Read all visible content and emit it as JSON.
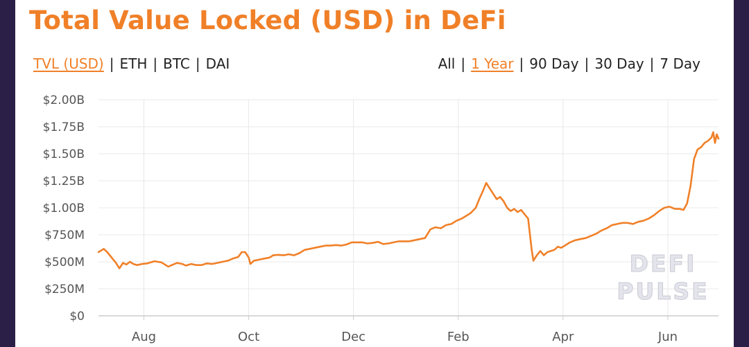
{
  "title": "Total Value Locked (USD) in DeFi",
  "metric_options": [
    {
      "label": "TVL (USD)",
      "active": true
    },
    {
      "label": "ETH",
      "active": false
    },
    {
      "label": "BTC",
      "active": false
    },
    {
      "label": "DAI",
      "active": false
    }
  ],
  "range_options": [
    {
      "label": "All",
      "active": false
    },
    {
      "label": "1 Year",
      "active": true
    },
    {
      "label": "90 Day",
      "active": false
    },
    {
      "label": "30 Day",
      "active": false
    },
    {
      "label": "7 Day",
      "active": false
    }
  ],
  "watermark": [
    "DEFI",
    "PULSE"
  ],
  "colors": {
    "accent": "#f08028",
    "grid": "#e8e8e8",
    "axis": "#cccccc",
    "tick_text": "#555555"
  },
  "chart_data": {
    "type": "line",
    "title": "Total Value Locked (USD) in DeFi",
    "xlabel": "",
    "ylabel": "",
    "ylim": [
      0,
      2000000000
    ],
    "xlim": [
      0,
      355
    ],
    "grid": true,
    "legend": "none",
    "y_ticks": [
      {
        "value": 0,
        "label": "$0"
      },
      {
        "value": 250000000,
        "label": "$250M"
      },
      {
        "value": 500000000,
        "label": "$500M"
      },
      {
        "value": 750000000,
        "label": "$750M"
      },
      {
        "value": 1000000000,
        "label": "$1.00B"
      },
      {
        "value": 1250000000,
        "label": "$1.25B"
      },
      {
        "value": 1500000000,
        "label": "$1.50B"
      },
      {
        "value": 1750000000,
        "label": "$1.75B"
      },
      {
        "value": 2000000000,
        "label": "$2.00B"
      }
    ],
    "x_ticks": [
      {
        "day": 26,
        "label": "Aug"
      },
      {
        "day": 86,
        "label": "Oct"
      },
      {
        "day": 146,
        "label": "Dec"
      },
      {
        "day": 206,
        "label": "Feb"
      },
      {
        "day": 266,
        "label": "Apr"
      },
      {
        "day": 326,
        "label": "Jun"
      }
    ],
    "series": [
      {
        "color": "#f08028",
        "points": [
          [
            0,
            590000000
          ],
          [
            3,
            620000000
          ],
          [
            5,
            590000000
          ],
          [
            8,
            530000000
          ],
          [
            10,
            490000000
          ],
          [
            12,
            440000000
          ],
          [
            14,
            490000000
          ],
          [
            16,
            475000000
          ],
          [
            18,
            500000000
          ],
          [
            20,
            480000000
          ],
          [
            22,
            470000000
          ],
          [
            25,
            480000000
          ],
          [
            28,
            485000000
          ],
          [
            30,
            495000000
          ],
          [
            32,
            505000000
          ],
          [
            34,
            500000000
          ],
          [
            36,
            495000000
          ],
          [
            38,
            475000000
          ],
          [
            40,
            455000000
          ],
          [
            42,
            470000000
          ],
          [
            45,
            490000000
          ],
          [
            48,
            480000000
          ],
          [
            50,
            465000000
          ],
          [
            53,
            480000000
          ],
          [
            56,
            470000000
          ],
          [
            59,
            470000000
          ],
          [
            62,
            485000000
          ],
          [
            65,
            480000000
          ],
          [
            68,
            490000000
          ],
          [
            71,
            500000000
          ],
          [
            74,
            510000000
          ],
          [
            77,
            530000000
          ],
          [
            80,
            545000000
          ],
          [
            82,
            590000000
          ],
          [
            84,
            590000000
          ],
          [
            86,
            540000000
          ],
          [
            87,
            480000000
          ],
          [
            89,
            510000000
          ],
          [
            92,
            520000000
          ],
          [
            95,
            530000000
          ],
          [
            98,
            540000000
          ],
          [
            100,
            560000000
          ],
          [
            103,
            565000000
          ],
          [
            106,
            560000000
          ],
          [
            109,
            570000000
          ],
          [
            112,
            560000000
          ],
          [
            115,
            580000000
          ],
          [
            118,
            610000000
          ],
          [
            121,
            620000000
          ],
          [
            124,
            630000000
          ],
          [
            127,
            640000000
          ],
          [
            130,
            650000000
          ],
          [
            133,
            650000000
          ],
          [
            136,
            655000000
          ],
          [
            139,
            650000000
          ],
          [
            142,
            660000000
          ],
          [
            145,
            680000000
          ],
          [
            148,
            680000000
          ],
          [
            151,
            680000000
          ],
          [
            154,
            670000000
          ],
          [
            157,
            675000000
          ],
          [
            160,
            685000000
          ],
          [
            163,
            665000000
          ],
          [
            166,
            670000000
          ],
          [
            169,
            680000000
          ],
          [
            172,
            690000000
          ],
          [
            175,
            690000000
          ],
          [
            178,
            690000000
          ],
          [
            181,
            700000000
          ],
          [
            184,
            710000000
          ],
          [
            187,
            720000000
          ],
          [
            190,
            800000000
          ],
          [
            193,
            820000000
          ],
          [
            196,
            810000000
          ],
          [
            199,
            840000000
          ],
          [
            202,
            850000000
          ],
          [
            205,
            880000000
          ],
          [
            208,
            900000000
          ],
          [
            210,
            920000000
          ],
          [
            213,
            950000000
          ],
          [
            216,
            1000000000
          ],
          [
            218,
            1080000000
          ],
          [
            220,
            1150000000
          ],
          [
            222,
            1230000000
          ],
          [
            224,
            1180000000
          ],
          [
            226,
            1130000000
          ],
          [
            228,
            1080000000
          ],
          [
            230,
            1100000000
          ],
          [
            232,
            1060000000
          ],
          [
            234,
            1000000000
          ],
          [
            236,
            970000000
          ],
          [
            238,
            990000000
          ],
          [
            240,
            960000000
          ],
          [
            242,
            980000000
          ],
          [
            244,
            940000000
          ],
          [
            246,
            900000000
          ],
          [
            247,
            760000000
          ],
          [
            248,
            620000000
          ],
          [
            249,
            510000000
          ],
          [
            251,
            560000000
          ],
          [
            253,
            600000000
          ],
          [
            255,
            560000000
          ],
          [
            257,
            590000000
          ],
          [
            259,
            600000000
          ],
          [
            261,
            610000000
          ],
          [
            263,
            640000000
          ],
          [
            265,
            630000000
          ],
          [
            267,
            650000000
          ],
          [
            270,
            680000000
          ],
          [
            273,
            700000000
          ],
          [
            276,
            710000000
          ],
          [
            279,
            720000000
          ],
          [
            282,
            740000000
          ],
          [
            285,
            760000000
          ],
          [
            288,
            790000000
          ],
          [
            291,
            810000000
          ],
          [
            294,
            840000000
          ],
          [
            297,
            850000000
          ],
          [
            300,
            860000000
          ],
          [
            303,
            860000000
          ],
          [
            306,
            850000000
          ],
          [
            309,
            870000000
          ],
          [
            312,
            880000000
          ],
          [
            315,
            900000000
          ],
          [
            318,
            930000000
          ],
          [
            321,
            970000000
          ],
          [
            324,
            1000000000
          ],
          [
            327,
            1010000000
          ],
          [
            330,
            990000000
          ],
          [
            333,
            990000000
          ],
          [
            335,
            980000000
          ],
          [
            337,
            1040000000
          ],
          [
            339,
            1200000000
          ],
          [
            341,
            1450000000
          ],
          [
            343,
            1540000000
          ],
          [
            345,
            1560000000
          ],
          [
            347,
            1600000000
          ],
          [
            349,
            1620000000
          ],
          [
            351,
            1650000000
          ],
          [
            352,
            1700000000
          ],
          [
            353,
            1600000000
          ],
          [
            354,
            1680000000
          ],
          [
            355,
            1640000000
          ]
        ]
      }
    ]
  }
}
